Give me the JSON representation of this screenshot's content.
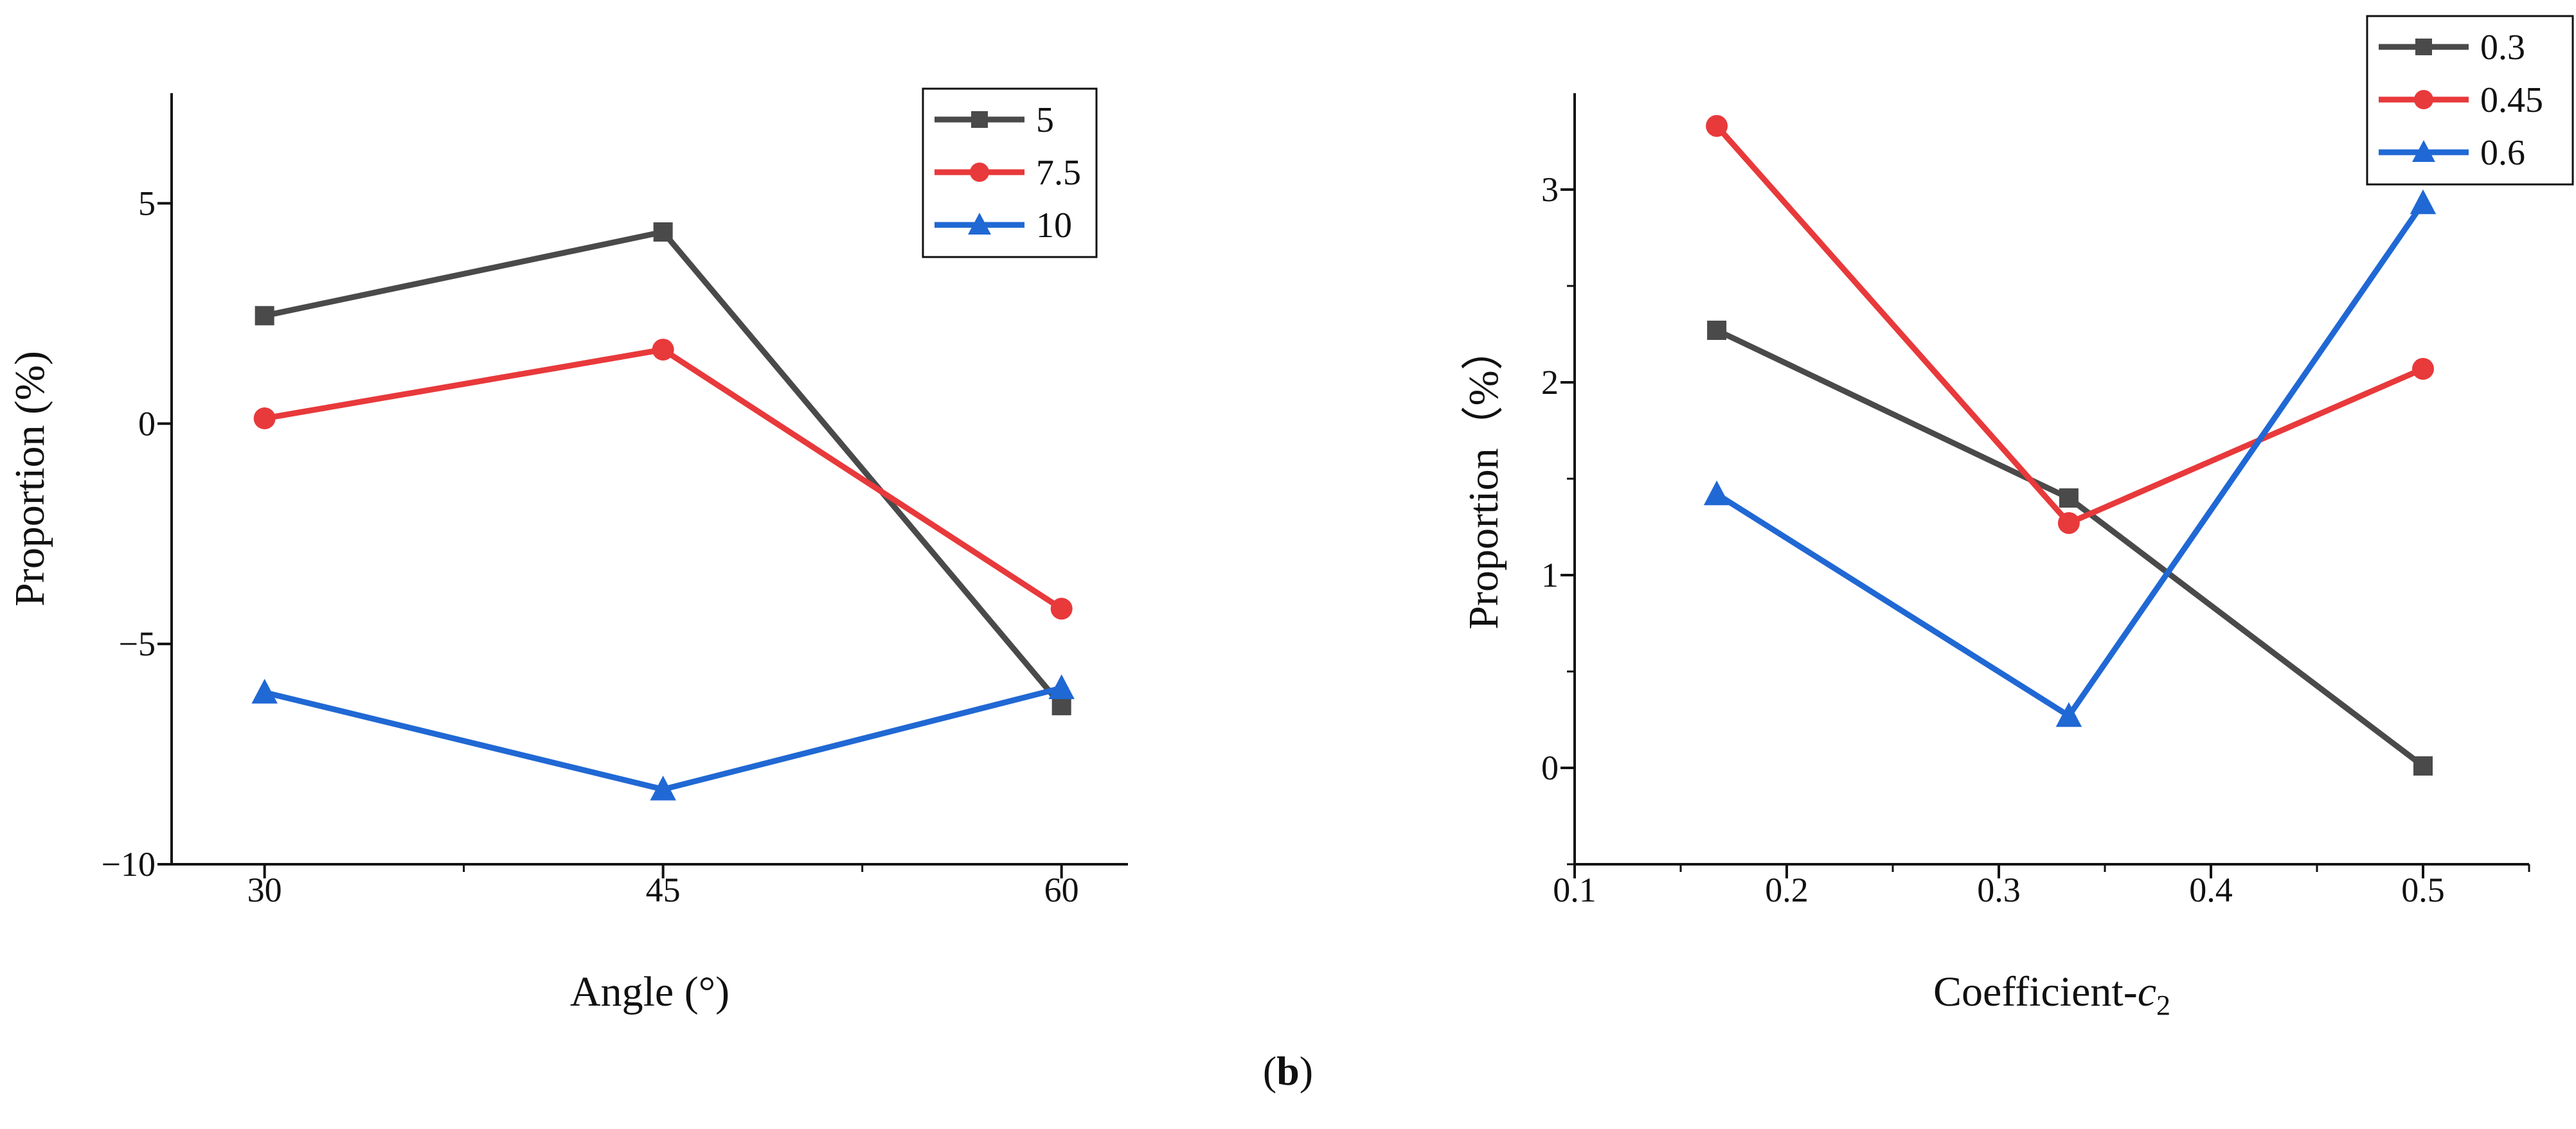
{
  "panel_caption": {
    "open": "(",
    "letter": "b",
    "close": ")"
  },
  "chart_data": [
    {
      "type": "line",
      "title": "",
      "xlabel": "Angle (°)",
      "ylabel": "Proportion (%)",
      "xlim": [
        26.5,
        62.5
      ],
      "ylim": [
        -10,
        7.5
      ],
      "xticks": [
        30,
        45,
        60
      ],
      "xtick_labels": [
        "30",
        "45",
        "60"
      ],
      "yticks": [
        -10,
        -5,
        0,
        5
      ],
      "ytick_labels": [
        "−10",
        "−5",
        "0",
        "5"
      ],
      "grid": false,
      "legend_position": "top-right",
      "x": [
        30,
        45,
        60
      ],
      "series": [
        {
          "name": "5",
          "color": "#4a4a4a",
          "marker": "square",
          "values": [
            2.45,
            4.35,
            -6.4
          ]
        },
        {
          "name": "7.5",
          "color": "#e8393b",
          "marker": "circle",
          "values": [
            0.12,
            1.68,
            -4.2
          ]
        },
        {
          "name": "10",
          "color": "#2068d4",
          "marker": "triangle",
          "values": [
            -6.1,
            -8.3,
            -6.0
          ]
        }
      ]
    },
    {
      "type": "line",
      "title": "",
      "xlabel": "Coefficient-",
      "xlabel_var": "c",
      "xlabel_sub": "2",
      "ylabel": "Proportion（%）",
      "xlim": [
        0.1,
        0.55
      ],
      "ylim": [
        -0.5,
        3.5
      ],
      "xticks": [
        0.1,
        0.2,
        0.3,
        0.4,
        0.5
      ],
      "xtick_labels": [
        "0.1",
        "0.2",
        "0.3",
        "0.4",
        "0.5"
      ],
      "yticks": [
        0,
        1,
        2,
        3
      ],
      "ytick_labels": [
        "0",
        "1",
        "2",
        "3"
      ],
      "grid": false,
      "legend_position": "top-right",
      "x": [
        0.167,
        0.333,
        0.5
      ],
      "series": [
        {
          "name": "0.3",
          "color": "#4a4a4a",
          "marker": "square",
          "values": [
            2.27,
            1.4,
            0.01
          ]
        },
        {
          "name": "0.45",
          "color": "#e8393b",
          "marker": "circle",
          "values": [
            3.33,
            1.27,
            2.07
          ]
        },
        {
          "name": "0.6",
          "color": "#2068d4",
          "marker": "triangle",
          "values": [
            1.42,
            0.27,
            2.93
          ]
        }
      ]
    }
  ]
}
